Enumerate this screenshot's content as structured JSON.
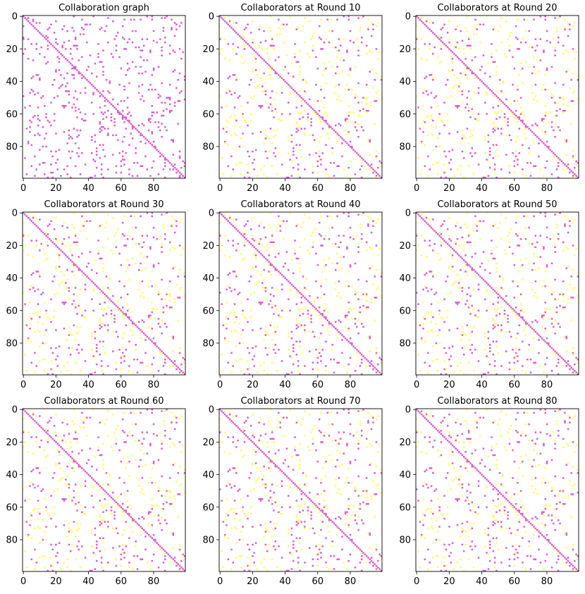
{
  "figure": {
    "background": "#ffffff",
    "colors": {
      "collaboration_edge": "#d95fcc",
      "other_edge": "#ffff66",
      "empty": "#ffffff",
      "axis": "#000000"
    }
  },
  "chart_data": [
    {
      "type": "heatmap",
      "title": "Collaboration graph",
      "xlabel": "",
      "ylabel": "",
      "n": 100,
      "xlim": [
        0,
        99
      ],
      "ylim": [
        99,
        0
      ],
      "xticks": [
        0,
        20,
        40,
        60,
        80
      ],
      "yticks": [
        0,
        20,
        40,
        60,
        80
      ],
      "seed": 11,
      "magenta_density": 0.055,
      "yellow_density": 0.0
    },
    {
      "type": "heatmap",
      "title": "Collaborators at Round 10",
      "xlabel": "",
      "ylabel": "",
      "n": 100,
      "xlim": [
        0,
        99
      ],
      "ylim": [
        99,
        0
      ],
      "xticks": [
        0,
        20,
        40,
        60,
        80
      ],
      "yticks": [
        0,
        20,
        40,
        60,
        80
      ],
      "seed": 11,
      "magenta_density": 0.028,
      "yellow_density": 0.027
    },
    {
      "type": "heatmap",
      "title": "Collaborators at Round 20",
      "xlabel": "",
      "ylabel": "",
      "n": 100,
      "xlim": [
        0,
        99
      ],
      "ylim": [
        99,
        0
      ],
      "xticks": [
        0,
        20,
        40,
        60,
        80
      ],
      "yticks": [
        0,
        20,
        40,
        60,
        80
      ],
      "seed": 11,
      "magenta_density": 0.03,
      "yellow_density": 0.025
    },
    {
      "type": "heatmap",
      "title": "Collaborators at Round 30",
      "xlabel": "",
      "ylabel": "",
      "n": 100,
      "xlim": [
        0,
        99
      ],
      "ylim": [
        99,
        0
      ],
      "xticks": [
        0,
        20,
        40,
        60,
        80
      ],
      "yticks": [
        0,
        20,
        40,
        60,
        80
      ],
      "seed": 11,
      "magenta_density": 0.03,
      "yellow_density": 0.025
    },
    {
      "type": "heatmap",
      "title": "Collaborators at Round 40",
      "xlabel": "",
      "ylabel": "",
      "n": 100,
      "xlim": [
        0,
        99
      ],
      "ylim": [
        99,
        0
      ],
      "xticks": [
        0,
        20,
        40,
        60,
        80
      ],
      "yticks": [
        0,
        20,
        40,
        60,
        80
      ],
      "seed": 11,
      "magenta_density": 0.031,
      "yellow_density": 0.024
    },
    {
      "type": "heatmap",
      "title": "Collaborators at Round 50",
      "xlabel": "",
      "ylabel": "",
      "n": 100,
      "xlim": [
        0,
        99
      ],
      "ylim": [
        99,
        0
      ],
      "xticks": [
        0,
        20,
        40,
        60,
        80
      ],
      "yticks": [
        0,
        20,
        40,
        60,
        80
      ],
      "seed": 11,
      "magenta_density": 0.031,
      "yellow_density": 0.024
    },
    {
      "type": "heatmap",
      "title": "Collaborators at Round 60",
      "xlabel": "",
      "ylabel": "",
      "n": 100,
      "xlim": [
        0,
        99
      ],
      "ylim": [
        99,
        0
      ],
      "xticks": [
        0,
        20,
        40,
        60,
        80
      ],
      "yticks": [
        0,
        20,
        40,
        60,
        80
      ],
      "seed": 11,
      "magenta_density": 0.03,
      "yellow_density": 0.025
    },
    {
      "type": "heatmap",
      "title": "Collaborators at Round 70",
      "xlabel": "",
      "ylabel": "",
      "n": 100,
      "xlim": [
        0,
        99
      ],
      "ylim": [
        99,
        0
      ],
      "xticks": [
        0,
        20,
        40,
        60,
        80
      ],
      "yticks": [
        0,
        20,
        40,
        60,
        80
      ],
      "seed": 11,
      "magenta_density": 0.031,
      "yellow_density": 0.024
    },
    {
      "type": "heatmap",
      "title": "Collaborators at Round 80",
      "xlabel": "",
      "ylabel": "",
      "n": 100,
      "xlim": [
        0,
        99
      ],
      "ylim": [
        99,
        0
      ],
      "xticks": [
        0,
        20,
        40,
        60,
        80
      ],
      "yticks": [
        0,
        20,
        40,
        60,
        80
      ],
      "seed": 11,
      "magenta_density": 0.032,
      "yellow_density": 0.023
    }
  ]
}
